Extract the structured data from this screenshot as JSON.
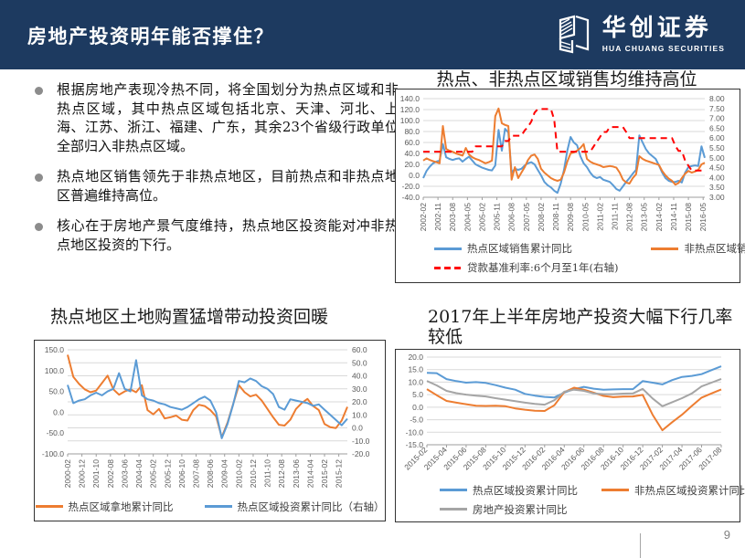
{
  "header": {
    "title": "房地产投资明年能否撑住？",
    "logo_cn": "华创证券",
    "logo_en": "HUA CHUANG SECURITIES"
  },
  "bullets": [
    "根据房地产表现冷热不同，将全国划分为热点区域和非热点区域，其中热点区域包括北京、天津、河北、上海、江苏、浙江、福建、广东，其余23个省级行政单位全部归入非热点区域。",
    "热点地区销售领先于非热点地区，目前热点和非热点地区普遍维持高位。",
    "核心在于房地产景气度维持，热点地区投资能对冲非热点地区投资的下行。"
  ],
  "footer": {
    "page_number": "9"
  },
  "colors": {
    "blue": "#5B9BD5",
    "orange": "#ED7D31",
    "gray": "#A5A5A5",
    "red": "#FF0000",
    "header_bg": "#1D3A60"
  },
  "chart_data": [
    {
      "type": "line",
      "title": "热点、非热点区域销售均维持高位",
      "grid": "left",
      "left_axis": {
        "min": -40,
        "max": 140,
        "step": 20,
        "dec": 1
      },
      "right_axis": {
        "min": 3,
        "max": 8,
        "step": 0.5,
        "dec": 2
      },
      "x_total_months": 172,
      "x_tick_step_months": 9,
      "data_step_months": 2,
      "x_labels": [
        "2002-02",
        "2002-11",
        "2003-08",
        "2004-05",
        "2005-02",
        "2005-11",
        "2006-08",
        "2007-05",
        "2008-02",
        "2008-11",
        "2009-08",
        "2010-05",
        "2011-02",
        "2011-11",
        "2012-08",
        "2013-05",
        "2014-02",
        "2014-11",
        "2015-08",
        "2016-05"
      ],
      "series": [
        {
          "name": "热点区域销售累计同比",
          "color": "blue",
          "axis": "left",
          "dash": false,
          "values": [
            -5,
            8,
            16,
            22,
            25,
            27,
            57,
            33,
            30,
            28,
            30,
            31,
            25,
            30,
            34,
            27,
            20,
            17,
            14,
            12,
            10,
            9,
            18,
            83,
            45,
            85,
            78,
            5,
            12,
            10,
            12,
            18,
            22,
            24,
            20,
            10,
            0,
            -12,
            -18,
            -22,
            -28,
            -32,
            -15,
            10,
            45,
            70,
            60,
            55,
            35,
            22,
            15,
            5,
            -2,
            -5,
            -3,
            -8,
            -10,
            -12,
            -18,
            -25,
            -28,
            -20,
            -12,
            -5,
            3,
            10,
            73,
            60,
            48,
            40,
            35,
            30,
            18,
            5,
            -5,
            -10,
            -12,
            -12,
            -10,
            -13,
            5,
            15,
            17,
            18,
            17,
            53,
            32
          ]
        },
        {
          "name": "非热点区域销售累计同比",
          "color": "orange",
          "axis": "left",
          "dash": false,
          "values": [
            27,
            31,
            28,
            26,
            24,
            22,
            90,
            48,
            45,
            43,
            40,
            38,
            36,
            50,
            38,
            33,
            30,
            28,
            25,
            22,
            24,
            27,
            108,
            122,
            95,
            92,
            90,
            -8,
            15,
            -5,
            5,
            15,
            28,
            36,
            38,
            30,
            12,
            5,
            0,
            -5,
            -8,
            -10,
            -8,
            5,
            25,
            40,
            42,
            45,
            50,
            57,
            30,
            25,
            22,
            20,
            18,
            15,
            16,
            17,
            16,
            14,
            5,
            -8,
            -13,
            -15,
            -5,
            2,
            35,
            30,
            27,
            25,
            23,
            21,
            19,
            8,
            0,
            -6,
            -10,
            -17,
            -14,
            -5,
            3,
            8,
            5,
            7,
            10,
            20,
            23
          ]
        },
        {
          "name": "贷款基准利率:6个月至1年(右轴)",
          "color": "red",
          "axis": "right",
          "dash": true,
          "values": [
            5.31,
            5.31,
            5.31,
            5.31,
            5.31,
            5.31,
            5.31,
            5.31,
            5.31,
            5.31,
            5.31,
            5.31,
            5.31,
            5.31,
            5.31,
            5.31,
            5.58,
            5.58,
            5.58,
            5.58,
            5.58,
            5.58,
            5.58,
            5.58,
            5.58,
            5.85,
            5.85,
            6.12,
            6.12,
            6.12,
            6.12,
            6.39,
            6.57,
            6.84,
            7.29,
            7.47,
            7.47,
            7.47,
            7.47,
            7.47,
            6.93,
            5.31,
            5.31,
            5.31,
            5.31,
            5.31,
            5.31,
            5.31,
            5.31,
            5.31,
            5.31,
            5.31,
            5.56,
            5.81,
            6.06,
            6.31,
            6.31,
            6.56,
            6.56,
            6.56,
            6.56,
            6.56,
            6.31,
            6.0,
            6.0,
            6.0,
            6.0,
            6.0,
            6.0,
            6.0,
            6.0,
            6.0,
            6.0,
            6.0,
            6.0,
            6.0,
            6.0,
            5.6,
            5.35,
            5.35,
            4.85,
            4.6,
            4.35,
            4.35,
            4.35,
            4.35,
            4.35
          ]
        }
      ]
    },
    {
      "type": "line",
      "title": "热点地区土地购置猛增带动投资回暖",
      "grid": "right",
      "left_axis": {
        "min": -100,
        "max": 150,
        "step": 50,
        "dec": 1
      },
      "right_axis": {
        "min": -20,
        "max": 60,
        "step": 10,
        "dec": 1
      },
      "x_total_months": 196,
      "x_tick_step_months": 10,
      "data_step_months": 4,
      "x_labels": [
        "2000-02",
        "2000-12",
        "2001-10",
        "2002-08",
        "2003-06",
        "2004-04",
        "2005-02",
        "2005-12",
        "2006-10",
        "2007-08",
        "2008-06",
        "2009-04",
        "2010-02",
        "2010-12",
        "2011-10",
        "2012-08",
        "2013-06",
        "2014-04",
        "2015-02",
        "2015-12"
      ],
      "series": [
        {
          "name": "热点区域拿地累计同比",
          "color": "orange",
          "axis": "left",
          "dash": false,
          "values": [
            138,
            85,
            68,
            55,
            48,
            52,
            70,
            88,
            55,
            42,
            50,
            55,
            48,
            65,
            5,
            -5,
            8,
            -15,
            -12,
            -8,
            -18,
            -20,
            5,
            18,
            15,
            5,
            -10,
            -60,
            -25,
            20,
            65,
            48,
            38,
            42,
            28,
            8,
            -12,
            -30,
            -32,
            -18,
            8,
            22,
            32,
            15,
            5,
            -28,
            -36,
            -38,
            -20,
            13
          ]
        },
        {
          "name": "热点区域投资累计同比（右轴）",
          "color": "blue",
          "axis": "right",
          "dash": false,
          "values": [
            33,
            19,
            21,
            22,
            25,
            27,
            25,
            28,
            30,
            42,
            30,
            28,
            52,
            25,
            22,
            21,
            19,
            18,
            16,
            15,
            14,
            16,
            19,
            22,
            24,
            21,
            12,
            -8,
            3,
            18,
            36,
            35,
            38,
            36,
            32,
            30,
            26,
            16,
            14,
            22,
            21,
            20,
            19,
            17,
            18,
            14,
            10,
            6,
            2,
            7
          ]
        }
      ]
    },
    {
      "type": "line",
      "title": "2017年上半年房地产投资大幅下行几率较低",
      "grid": "left",
      "left_axis": {
        "min": -15,
        "max": 20,
        "step": 5,
        "dec": 1
      },
      "x_total_months": 30,
      "x_tick_step_months": 2,
      "data_step_months": 1,
      "x_labels": [
        "2015-02",
        "2015-04",
        "2015-06",
        "2015-08",
        "2015-10",
        "2015-12",
        "2016-02",
        "2016-04",
        "2016-06",
        "2016-08",
        "2016-10",
        "2016-12",
        "2017-02",
        "2017-04",
        "2017-06",
        "2017-08"
      ],
      "series": [
        {
          "name": "热点区域投资累计同比",
          "color": "blue",
          "axis": "left",
          "dash": false,
          "values": [
            13.7,
            13.6,
            11.2,
            10.4,
            9.8,
            10.0,
            9.7,
            8.8,
            7.8,
            7.0,
            5.3,
            4.6,
            4.1,
            3.9,
            5.8,
            7.2,
            8.1,
            7.4,
            7.0,
            7.1,
            7.2,
            7.2,
            10.4,
            9.8,
            9.1,
            10.8,
            12.1,
            12.5,
            13.2,
            14.8,
            16.3
          ]
        },
        {
          "name": "非热点区域投资累计同比",
          "color": "orange",
          "axis": "left",
          "dash": false,
          "values": [
            7.2,
            4.8,
            2.5,
            1.8,
            1.2,
            0.6,
            0.5,
            0.6,
            0.4,
            -0.5,
            -1.0,
            -1.4,
            -1.5,
            0.8,
            6.0,
            7.8,
            7.0,
            5.8,
            4.5,
            4.0,
            4.2,
            4.3,
            4.9,
            -3.0,
            -9.2,
            -6.0,
            -3.0,
            0.5,
            3.8,
            5.5,
            7.1
          ]
        },
        {
          "name": "房地产投资累计同比",
          "color": "gray",
          "axis": "left",
          "dash": false,
          "values": [
            10.5,
            8.7,
            6.5,
            5.6,
            5.0,
            4.6,
            4.3,
            3.6,
            3.0,
            2.4,
            1.8,
            1.3,
            1.0,
            2.8,
            6.2,
            7.0,
            6.5,
            5.5,
            5.2,
            5.2,
            5.4,
            5.5,
            7.3,
            3.5,
            0.4,
            2.0,
            3.6,
            5.5,
            8.3,
            9.8,
            11.3
          ]
        }
      ]
    }
  ]
}
